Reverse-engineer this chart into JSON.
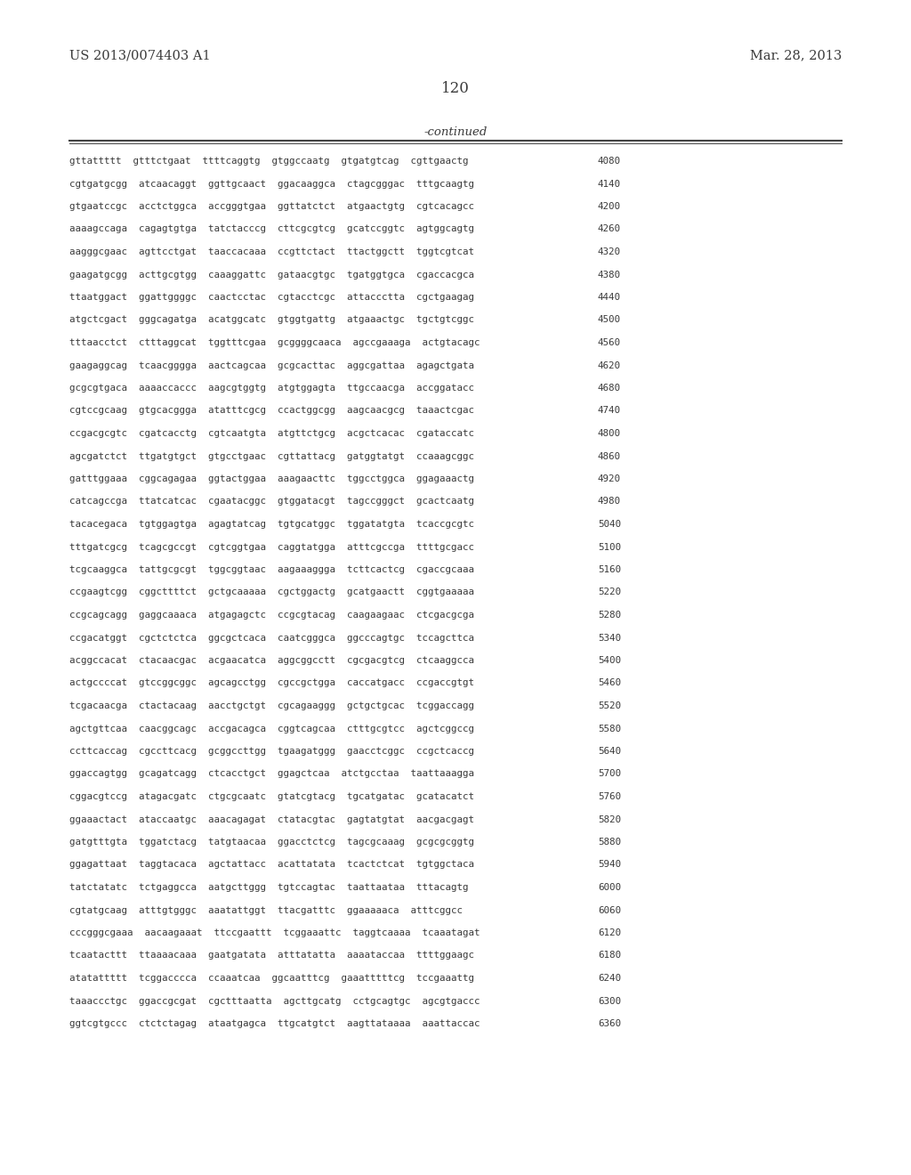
{
  "header_left": "US 2013/0074403 A1",
  "header_right": "Mar. 28, 2013",
  "page_number": "120",
  "continued_label": "-continued",
  "background_color": "#ffffff",
  "text_color": "#3a3a3a",
  "lines": [
    {
      "seq": "gttattttt  gtttctgaat  ttttcaggtg  gtggccaatg  gtgatgtcag  cgttgaactg",
      "num": "4080"
    },
    {
      "seq": "cgtgatgcgg  atcaacaggt  ggttgcaact  ggacaaggca  ctagcgggac  tttgcaagtg",
      "num": "4140"
    },
    {
      "seq": "gtgaatccgc  acctctggca  accgggtgaa  ggttatctct  atgaactgtg  cgtcacagcc",
      "num": "4200"
    },
    {
      "seq": "aaaagccaga  cagagtgtga  tatctacccg  cttcgcgtcg  gcatccggtc  agtggcagtg",
      "num": "4260"
    },
    {
      "seq": "aagggcgaac  agttcctgat  taaccacaaa  ccgttctact  ttactggctt  tggtcgtcat",
      "num": "4320"
    },
    {
      "seq": "gaagatgcgg  acttgcgtgg  caaaggattc  gataacgtgc  tgatggtgca  cgaccacgca",
      "num": "4380"
    },
    {
      "seq": "ttaatggact  ggattggggc  caactcctac  cgtacctcgc  attaccctta  cgctgaagag",
      "num": "4440"
    },
    {
      "seq": "atgctcgact  gggcagatga  acatggcatc  gtggtgattg  atgaaactgc  tgctgtcggc",
      "num": "4500"
    },
    {
      "seq": "tttaacctct  ctttaggcat  tggtttcgaa  gcggggcaaca  agccgaaaga  actgtacagc",
      "num": "4560"
    },
    {
      "seq": "gaagaggcag  tcaacgggga  aactcagcaa  gcgcacttac  aggcgattaa  agagctgata",
      "num": "4620"
    },
    {
      "seq": "gcgcgtgaca  aaaaccaccc  aagcgtggtg  atgtggagta  ttgccaacga  accggatacc",
      "num": "4680"
    },
    {
      "seq": "cgtccgcaag  gtgcacggga  atatttcgcg  ccactggcgg  aagcaacgcg  taaactcgac",
      "num": "4740"
    },
    {
      "seq": "ccgacgcgtc  cgatcacctg  cgtcaatgta  atgttctgcg  acgctcacac  cgataccatc",
      "num": "4800"
    },
    {
      "seq": "agcgatctct  ttgatgtgct  gtgcctgaac  cgttattacg  gatggtatgt  ccaaagcggc",
      "num": "4860"
    },
    {
      "seq": "gatttggaaa  cggcagagaa  ggtactggaa  aaagaacttc  tggcctggca  ggagaaactg",
      "num": "4920"
    },
    {
      "seq": "catcagccga  ttatcatcac  cgaatacggc  gtggatacgt  tagccgggct  gcactcaatg",
      "num": "4980"
    },
    {
      "seq": "tacacegaca  tgtggagtga  agagtatcag  tgtgcatggc  tggatatgta  tcaccgcgtc",
      "num": "5040"
    },
    {
      "seq": "tttgatcgcg  tcagcgccgt  cgtcggtgaa  caggtatgga  atttcgccga  ttttgcgacc",
      "num": "5100"
    },
    {
      "seq": "tcgcaaggca  tattgcgcgt  tggcggtaac  aagaaaggga  tcttcactcg  cgaccgcaaa",
      "num": "5160"
    },
    {
      "seq": "ccgaagtcgg  cggcttttct  gctgcaaaaa  cgctggactg  gcatgaactt  cggtgaaaaa",
      "num": "5220"
    },
    {
      "seq": "ccgcagcagg  gaggcaaaca  atgagagctc  ccgcgtacag  caagaagaac  ctcgacgcga",
      "num": "5280"
    },
    {
      "seq": "ccgacatggt  cgctctctca  ggcgctcaca  caatcgggca  ggcccagtgc  tccagcttca",
      "num": "5340"
    },
    {
      "seq": "acggccacat  ctacaacgac  acgaacatca  aggcggcctt  cgcgacgtcg  ctcaaggcca",
      "num": "5400"
    },
    {
      "seq": "actgccccat  gtccggcggc  agcagcctgg  cgccgctgga  caccatgacc  ccgaccgtgt",
      "num": "5460"
    },
    {
      "seq": "tcgacaacga  ctactacaag  aacctgctgt  cgcagaaggg  gctgctgcac  tcggaccagg",
      "num": "5520"
    },
    {
      "seq": "agctgttcaa  caacggcagc  accgacagca  cggtcagcaa  ctttgcgtcc  agctcggccg",
      "num": "5580"
    },
    {
      "seq": "ccttcaccag  cgccttcacg  gcggccttgg  tgaagatggg  gaacctcggc  ccgctcaccg",
      "num": "5640"
    },
    {
      "seq": "ggaccagtgg  gcagatcagg  ctcacctgct  ggagctcaa  atctgcctaa  taattaaagga",
      "num": "5700"
    },
    {
      "seq": "cggacgtccg  atagacgatc  ctgcgcaatc  gtatcgtacg  tgcatgatac  gcatacatct",
      "num": "5760"
    },
    {
      "seq": "ggaaactact  ataccaatgc  aaacagagat  ctatacgtac  gagtatgtat  aacgacgagt",
      "num": "5820"
    },
    {
      "seq": "gatgtttgta  tggatctacg  tatgtaacaa  ggacctctcg  tagcgcaaag  gcgcgcggtg",
      "num": "5880"
    },
    {
      "seq": "ggagattaat  taggtacaca  agctattacc  acattatata  tcactctcat  tgtggctaca",
      "num": "5940"
    },
    {
      "seq": "tatctatatc  tctgaggcca  aatgcttggg  tgtccagtac  taattaataa  tttacagtg",
      "num": "6000"
    },
    {
      "seq": "cgtatgcaag  atttgtgggc  aaatattggt  ttacgatttc  ggaaaaaca  atttcggcc",
      "num": "6060"
    },
    {
      "seq": "cccgggcgaaa  aacaagaaat  ttccgaattt  tcggaaattc  taggtcaaaa  tcaaatagat",
      "num": "6120"
    },
    {
      "seq": "tcaatacttt  ttaaaacaaa  gaatgatata  atttatatta  aaaataccaa  ttttggaagc",
      "num": "6180"
    },
    {
      "seq": "atatattttt  tcggacccca  ccaaatcaa  ggcaatttcg  gaaatttttcg  tccgaaattg",
      "num": "6240"
    },
    {
      "seq": "taaaccctgc  ggaccgcgat  cgctttaatta  agcttgcatg  cctgcagtgc  agcgtgaccc",
      "num": "6300"
    },
    {
      "seq": "ggtcgtgccc  ctctctagag  ataatgagca  ttgcatgtct  aagttataaaa  aaattaccac",
      "num": "6360"
    }
  ]
}
